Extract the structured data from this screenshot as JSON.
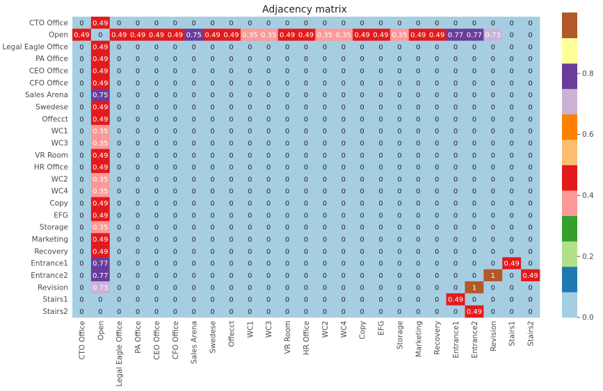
{
  "chart_data": {
    "type": "heatmap",
    "title": "Adjacency matrix",
    "labels": [
      "CTO Office",
      "Open",
      "Legal Eagle Office",
      "PA Office",
      "CEO Office",
      "CFO Office",
      "Sales Arena",
      "Swedese",
      "Offecct",
      "WC1",
      "WC3",
      "VR Room",
      "HR Office",
      "WC2",
      "WC4",
      "Copy",
      "EFG",
      "Storage",
      "Marketing",
      "Recovery",
      "Entrance1",
      "Entrance2",
      "Revision",
      "Stairs1",
      "Stairs2"
    ],
    "matrix": [
      [
        0,
        0.49,
        0,
        0,
        0,
        0,
        0,
        0,
        0,
        0,
        0,
        0,
        0,
        0,
        0,
        0,
        0,
        0,
        0,
        0,
        0,
        0,
        0,
        0,
        0
      ],
      [
        0.49,
        0,
        0.49,
        0.49,
        0.49,
        0.49,
        0.75,
        0.49,
        0.49,
        0.35,
        0.35,
        0.49,
        0.49,
        0.35,
        0.35,
        0.49,
        0.49,
        0.35,
        0.49,
        0.49,
        0.77,
        0.77,
        0.73,
        0,
        0
      ],
      [
        0,
        0.49,
        0,
        0,
        0,
        0,
        0,
        0,
        0,
        0,
        0,
        0,
        0,
        0,
        0,
        0,
        0,
        0,
        0,
        0,
        0,
        0,
        0,
        0,
        0
      ],
      [
        0,
        0.49,
        0,
        0,
        0,
        0,
        0,
        0,
        0,
        0,
        0,
        0,
        0,
        0,
        0,
        0,
        0,
        0,
        0,
        0,
        0,
        0,
        0,
        0,
        0
      ],
      [
        0,
        0.49,
        0,
        0,
        0,
        0,
        0,
        0,
        0,
        0,
        0,
        0,
        0,
        0,
        0,
        0,
        0,
        0,
        0,
        0,
        0,
        0,
        0,
        0,
        0
      ],
      [
        0,
        0.49,
        0,
        0,
        0,
        0,
        0,
        0,
        0,
        0,
        0,
        0,
        0,
        0,
        0,
        0,
        0,
        0,
        0,
        0,
        0,
        0,
        0,
        0,
        0
      ],
      [
        0,
        0.75,
        0,
        0,
        0,
        0,
        0,
        0,
        0,
        0,
        0,
        0,
        0,
        0,
        0,
        0,
        0,
        0,
        0,
        0,
        0,
        0,
        0,
        0,
        0
      ],
      [
        0,
        0.49,
        0,
        0,
        0,
        0,
        0,
        0,
        0,
        0,
        0,
        0,
        0,
        0,
        0,
        0,
        0,
        0,
        0,
        0,
        0,
        0,
        0,
        0,
        0
      ],
      [
        0,
        0.49,
        0,
        0,
        0,
        0,
        0,
        0,
        0,
        0,
        0,
        0,
        0,
        0,
        0,
        0,
        0,
        0,
        0,
        0,
        0,
        0,
        0,
        0,
        0
      ],
      [
        0,
        0.35,
        0,
        0,
        0,
        0,
        0,
        0,
        0,
        0,
        0,
        0,
        0,
        0,
        0,
        0,
        0,
        0,
        0,
        0,
        0,
        0,
        0,
        0,
        0
      ],
      [
        0,
        0.35,
        0,
        0,
        0,
        0,
        0,
        0,
        0,
        0,
        0,
        0,
        0,
        0,
        0,
        0,
        0,
        0,
        0,
        0,
        0,
        0,
        0,
        0,
        0
      ],
      [
        0,
        0.49,
        0,
        0,
        0,
        0,
        0,
        0,
        0,
        0,
        0,
        0,
        0,
        0,
        0,
        0,
        0,
        0,
        0,
        0,
        0,
        0,
        0,
        0,
        0
      ],
      [
        0,
        0.49,
        0,
        0,
        0,
        0,
        0,
        0,
        0,
        0,
        0,
        0,
        0,
        0,
        0,
        0,
        0,
        0,
        0,
        0,
        0,
        0,
        0,
        0,
        0
      ],
      [
        0,
        0.35,
        0,
        0,
        0,
        0,
        0,
        0,
        0,
        0,
        0,
        0,
        0,
        0,
        0,
        0,
        0,
        0,
        0,
        0,
        0,
        0,
        0,
        0,
        0
      ],
      [
        0,
        0.35,
        0,
        0,
        0,
        0,
        0,
        0,
        0,
        0,
        0,
        0,
        0,
        0,
        0,
        0,
        0,
        0,
        0,
        0,
        0,
        0,
        0,
        0,
        0
      ],
      [
        0,
        0.49,
        0,
        0,
        0,
        0,
        0,
        0,
        0,
        0,
        0,
        0,
        0,
        0,
        0,
        0,
        0,
        0,
        0,
        0,
        0,
        0,
        0,
        0,
        0
      ],
      [
        0,
        0.49,
        0,
        0,
        0,
        0,
        0,
        0,
        0,
        0,
        0,
        0,
        0,
        0,
        0,
        0,
        0,
        0,
        0,
        0,
        0,
        0,
        0,
        0,
        0
      ],
      [
        0,
        0.35,
        0,
        0,
        0,
        0,
        0,
        0,
        0,
        0,
        0,
        0,
        0,
        0,
        0,
        0,
        0,
        0,
        0,
        0,
        0,
        0,
        0,
        0,
        0
      ],
      [
        0,
        0.49,
        0,
        0,
        0,
        0,
        0,
        0,
        0,
        0,
        0,
        0,
        0,
        0,
        0,
        0,
        0,
        0,
        0,
        0,
        0,
        0,
        0,
        0,
        0
      ],
      [
        0,
        0.49,
        0,
        0,
        0,
        0,
        0,
        0,
        0,
        0,
        0,
        0,
        0,
        0,
        0,
        0,
        0,
        0,
        0,
        0,
        0,
        0,
        0,
        0,
        0
      ],
      [
        0,
        0.77,
        0,
        0,
        0,
        0,
        0,
        0,
        0,
        0,
        0,
        0,
        0,
        0,
        0,
        0,
        0,
        0,
        0,
        0,
        0,
        0,
        0,
        0.49,
        0
      ],
      [
        0,
        0.77,
        0,
        0,
        0,
        0,
        0,
        0,
        0,
        0,
        0,
        0,
        0,
        0,
        0,
        0,
        0,
        0,
        0,
        0,
        0,
        0,
        1,
        0,
        0.49
      ],
      [
        0,
        0.73,
        0,
        0,
        0,
        0,
        0,
        0,
        0,
        0,
        0,
        0,
        0,
        0,
        0,
        0,
        0,
        0,
        0,
        0,
        0,
        1,
        0,
        0,
        0
      ],
      [
        0,
        0,
        0,
        0,
        0,
        0,
        0,
        0,
        0,
        0,
        0,
        0,
        0,
        0,
        0,
        0,
        0,
        0,
        0,
        0,
        0.49,
        0,
        0,
        0,
        0
      ],
      [
        0,
        0,
        0,
        0,
        0,
        0,
        0,
        0,
        0,
        0,
        0,
        0,
        0,
        0,
        0,
        0,
        0,
        0,
        0,
        0,
        0,
        0.49,
        0,
        0,
        0
      ]
    ],
    "value_range": [
      0,
      1
    ],
    "colormap": "Paired",
    "colors": [
      "#a6cee3",
      "#1f78b4",
      "#b2df8a",
      "#33a02c",
      "#fb9a99",
      "#e31a1c",
      "#fdbf6f",
      "#ff7f00",
      "#cab2d6",
      "#6a3d9a",
      "#ffff99",
      "#b15928"
    ],
    "colorbar_ticks": [
      0.0,
      0.2,
      0.4,
      0.6,
      0.8
    ],
    "colorbar_tick_labels": [
      "0.0",
      "0.2",
      "0.4",
      "0.6",
      "0.8"
    ],
    "annotations": true,
    "legend": "colorbar-right"
  }
}
